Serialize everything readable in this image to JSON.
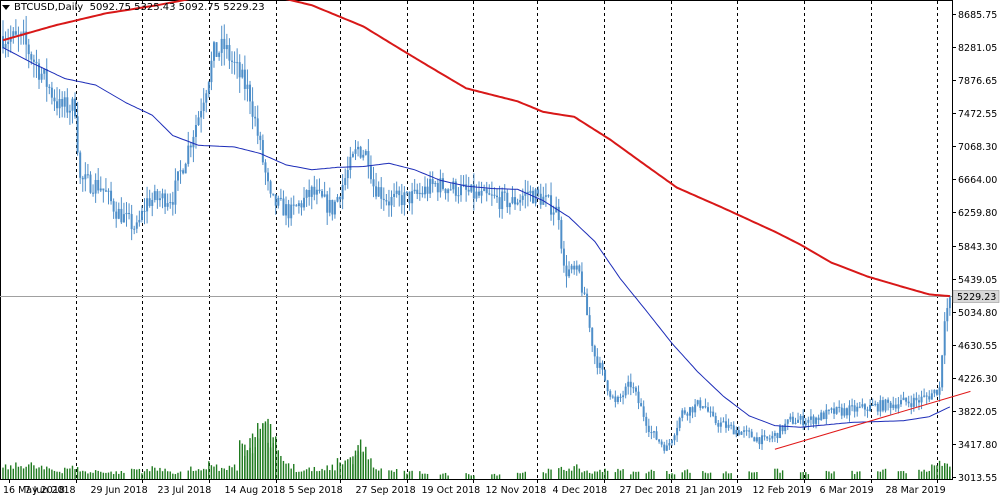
{
  "header": {
    "symbol": "BTCUSD,Daily",
    "open": "5092.75",
    "high": "5325.43",
    "low": "5092.75",
    "close": "5229.23"
  },
  "colors": {
    "candles": "#4f8fc9",
    "ma_fast": "#1c2cb8",
    "ma_slow": "#d81818",
    "trendline": "#e01818",
    "volume": "#1f7a1f",
    "grid_vertical": "#000000",
    "price_line": "#a0a0a0",
    "last_price_box": "#d8d8d8"
  },
  "chart_data": {
    "type": "candlestick",
    "y_ticks": [
      "8685.75",
      "8281.05",
      "7876.65",
      "7472.55",
      "7068.30",
      "6664.00",
      "6259.80",
      "5843.30",
      "5439.05",
      "5034.80",
      "4630.55",
      "4226.30",
      "3822.05",
      "3417.80",
      "3013.55"
    ],
    "y_tick_values": [
      8685.75,
      8281.05,
      7876.65,
      7472.55,
      7068.3,
      6664.0,
      6259.8,
      5843.3,
      5439.05,
      5034.8,
      4630.55,
      4226.3,
      3822.05,
      3417.8,
      3013.55
    ],
    "ylim": [
      2985,
      8790
    ],
    "x_labels": [
      "16 May 2018",
      "7 Jun 2018",
      "29 Jun 2018",
      "23 Jul 2018",
      "14 Aug 2018",
      "5 Sep 2018",
      "27 Sep 2018",
      "19 Oct 2018",
      "12 Nov 2018",
      "4 Dec 2018",
      "27 Dec 2018",
      "21 Jan 2019",
      "12 Feb 2019",
      "6 Mar 2019",
      "28 Mar 2019"
    ],
    "last_price": "5229.23",
    "last_price_value": 5229.23,
    "bar_count": 320,
    "price_keyframes": [
      [
        0,
        8420
      ],
      [
        8,
        8350
      ],
      [
        16,
        7900
      ],
      [
        22,
        7550
      ],
      [
        28,
        7550
      ],
      [
        30,
        6650
      ],
      [
        38,
        6580
      ],
      [
        44,
        6280
      ],
      [
        52,
        6050
      ],
      [
        56,
        6400
      ],
      [
        66,
        6450
      ],
      [
        76,
        7450
      ],
      [
        82,
        8200
      ],
      [
        86,
        8280
      ],
      [
        96,
        7700
      ],
      [
        100,
        7050
      ],
      [
        104,
        6400
      ],
      [
        112,
        6250
      ],
      [
        120,
        6500
      ],
      [
        128,
        6300
      ],
      [
        138,
        7050
      ],
      [
        142,
        6950
      ],
      [
        144,
        6600
      ],
      [
        150,
        6400
      ],
      [
        160,
        6450
      ],
      [
        168,
        6600
      ],
      [
        176,
        6550
      ],
      [
        184,
        6460
      ],
      [
        198,
        6380
      ],
      [
        204,
        6500
      ],
      [
        210,
        6420
      ],
      [
        216,
        6250
      ],
      [
        218,
        5550
      ],
      [
        224,
        5500
      ],
      [
        230,
        4500
      ],
      [
        238,
        3900
      ],
      [
        244,
        4150
      ],
      [
        252,
        3550
      ],
      [
        258,
        3360
      ],
      [
        264,
        3800
      ],
      [
        272,
        3920
      ],
      [
        276,
        3700
      ],
      [
        282,
        3620
      ],
      [
        292,
        3500
      ],
      [
        296,
        3450
      ],
      [
        300,
        3520
      ],
      [
        306,
        3700
      ],
      [
        314,
        3710
      ],
      [
        322,
        3800
      ],
      [
        332,
        3840
      ],
      [
        340,
        3880
      ],
      [
        348,
        3920
      ],
      [
        356,
        3950
      ],
      [
        360,
        4010
      ],
      [
        364,
        4100
      ],
      [
        366,
        5000
      ],
      [
        368,
        5150
      ]
    ],
    "ma_fast": [
      [
        0,
        8280
      ],
      [
        12,
        8080
      ],
      [
        24,
        7900
      ],
      [
        36,
        7820
      ],
      [
        48,
        7600
      ],
      [
        58,
        7450
      ],
      [
        66,
        7200
      ],
      [
        76,
        7080
      ],
      [
        90,
        7060
      ],
      [
        100,
        6980
      ],
      [
        110,
        6840
      ],
      [
        120,
        6780
      ],
      [
        130,
        6810
      ],
      [
        140,
        6820
      ],
      [
        150,
        6860
      ],
      [
        160,
        6780
      ],
      [
        170,
        6650
      ],
      [
        180,
        6580
      ],
      [
        190,
        6550
      ],
      [
        200,
        6540
      ],
      [
        210,
        6400
      ],
      [
        220,
        6200
      ],
      [
        230,
        5900
      ],
      [
        240,
        5440
      ],
      [
        250,
        5050
      ],
      [
        260,
        4650
      ],
      [
        270,
        4300
      ],
      [
        280,
        4000
      ],
      [
        290,
        3760
      ],
      [
        300,
        3640
      ],
      [
        310,
        3620
      ],
      [
        320,
        3650
      ],
      [
        330,
        3680
      ],
      [
        340,
        3690
      ],
      [
        350,
        3700
      ],
      [
        360,
        3750
      ],
      [
        368,
        3870
      ]
    ],
    "ma_slow": [
      [
        0,
        8370
      ],
      [
        20,
        8550
      ],
      [
        40,
        8700
      ],
      [
        60,
        8800
      ],
      [
        80,
        8920
      ],
      [
        100,
        8950
      ],
      [
        120,
        8800
      ],
      [
        140,
        8540
      ],
      [
        155,
        8250
      ],
      [
        165,
        8060
      ],
      [
        180,
        7780
      ],
      [
        200,
        7620
      ],
      [
        210,
        7490
      ],
      [
        222,
        7430
      ],
      [
        236,
        7150
      ],
      [
        250,
        6830
      ],
      [
        262,
        6560
      ],
      [
        280,
        6310
      ],
      [
        300,
        6020
      ],
      [
        310,
        5860
      ],
      [
        322,
        5640
      ],
      [
        336,
        5470
      ],
      [
        350,
        5340
      ],
      [
        360,
        5250
      ],
      [
        368,
        5230
      ]
    ],
    "trendline": [
      [
        300,
        3350
      ],
      [
        376,
        4060
      ]
    ],
    "volume_bars": [
      [
        0,
        14
      ],
      [
        4,
        16
      ],
      [
        8,
        18
      ],
      [
        12,
        14
      ],
      [
        16,
        12
      ],
      [
        20,
        10
      ],
      [
        24,
        14
      ],
      [
        28,
        12
      ],
      [
        32,
        8
      ],
      [
        36,
        10
      ],
      [
        40,
        8
      ],
      [
        44,
        8
      ],
      [
        50,
        12
      ],
      [
        54,
        10
      ],
      [
        58,
        14
      ],
      [
        62,
        10
      ],
      [
        66,
        8
      ],
      [
        72,
        12
      ],
      [
        76,
        10
      ],
      [
        80,
        18
      ],
      [
        84,
        12
      ],
      [
        88,
        14
      ],
      [
        92,
        40
      ],
      [
        94,
        30
      ],
      [
        96,
        48
      ],
      [
        98,
        56
      ],
      [
        100,
        60
      ],
      [
        102,
        62
      ],
      [
        104,
        50
      ],
      [
        106,
        28
      ],
      [
        110,
        18
      ],
      [
        114,
        10
      ],
      [
        118,
        12
      ],
      [
        122,
        10
      ],
      [
        126,
        14
      ],
      [
        130,
        22
      ],
      [
        134,
        24
      ],
      [
        136,
        30
      ],
      [
        138,
        40
      ],
      [
        140,
        28
      ],
      [
        144,
        12
      ],
      [
        150,
        10
      ],
      [
        156,
        8
      ],
      [
        162,
        8
      ],
      [
        170,
        6
      ],
      [
        180,
        6
      ],
      [
        190,
        6
      ],
      [
        200,
        8
      ],
      [
        210,
        10
      ],
      [
        216,
        12
      ],
      [
        220,
        14
      ],
      [
        224,
        10
      ],
      [
        228,
        8
      ],
      [
        232,
        12
      ],
      [
        238,
        10
      ],
      [
        244,
        8
      ],
      [
        250,
        10
      ],
      [
        258,
        8
      ],
      [
        264,
        10
      ],
      [
        272,
        8
      ],
      [
        280,
        8
      ],
      [
        290,
        10
      ],
      [
        300,
        10
      ],
      [
        310,
        8
      ],
      [
        320,
        8
      ],
      [
        330,
        8
      ],
      [
        340,
        10
      ],
      [
        348,
        8
      ],
      [
        356,
        12
      ],
      [
        360,
        14
      ],
      [
        364,
        18
      ],
      [
        366,
        14
      ],
      [
        368,
        12
      ]
    ]
  }
}
